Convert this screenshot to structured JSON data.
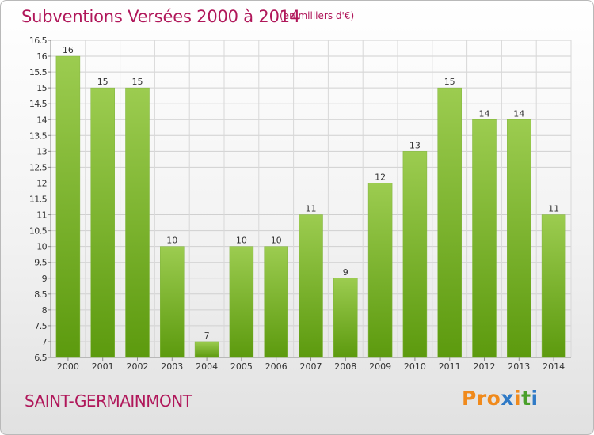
{
  "header": {
    "title": "Subventions Versées 2000 à 2014",
    "subtitle": "(en milliers d'€)"
  },
  "footer": {
    "city": "SAINT-GERMAINMONT",
    "logo": [
      "P",
      "r",
      "o",
      "x",
      "i",
      "t",
      "i"
    ]
  },
  "colors": {
    "title": "#b0175a",
    "bar_top": "#9ccc50",
    "bar_bottom": "#5c9a0e",
    "logo": [
      "#f08a1c",
      "#f08a1c",
      "#f08a1c",
      "#2f7ac6",
      "#f08a1c",
      "#49a02a",
      "#2f7ac6"
    ]
  },
  "chart_data": {
    "type": "bar",
    "title": "Subventions Versées 2000 à 2014",
    "subtitle": "(en milliers d'€)",
    "categories": [
      "2000",
      "2001",
      "2002",
      "2003",
      "2004",
      "2005",
      "2006",
      "2007",
      "2008",
      "2009",
      "2010",
      "2011",
      "2012",
      "2013",
      "2014"
    ],
    "values": [
      16,
      15,
      15,
      10,
      7,
      10,
      10,
      11,
      9,
      12,
      13,
      15,
      14,
      14,
      11
    ],
    "value_labels": [
      "16",
      "15",
      "15",
      "10",
      "7",
      "10",
      "10",
      "11",
      "9",
      "12",
      "13",
      "15",
      "14",
      "14",
      "11"
    ],
    "y_ticks": [
      "6.5",
      "7",
      "7.5",
      "8",
      "8.5",
      "9",
      "9.5",
      "10",
      "10.5",
      "11",
      "11.5",
      "12",
      "12.5",
      "13",
      "13.5",
      "14",
      "14.5",
      "15",
      "15.5",
      "16",
      "16.5"
    ],
    "ylim": [
      6.5,
      16.5
    ],
    "grid": true,
    "legend": "none"
  }
}
